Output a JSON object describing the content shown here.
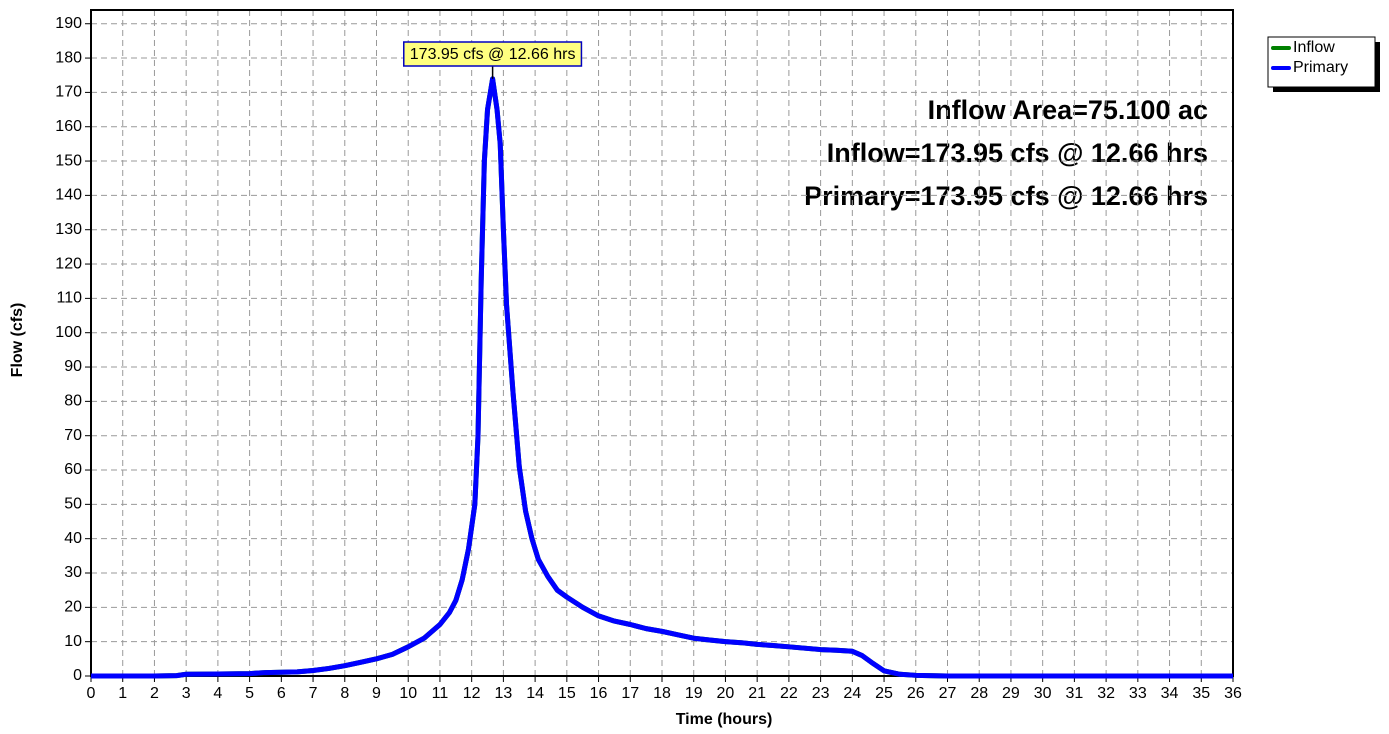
{
  "chart_data": {
    "type": "line",
    "y_label": "Flow  (cfs)",
    "x_label": "Time  (hours)",
    "annotations": [
      "173.95 cfs @ 12.66 hrs",
      "Inflow Area=75.100 ac",
      "Inflow=173.95 cfs @ 12.66 hrs",
      "Primary=173.95 cfs @ 12.66 hrs"
    ],
    "x": [
      0,
      1,
      2,
      2.7,
      3,
      4,
      5,
      5.5,
      6,
      6.5,
      7,
      7.5,
      8,
      8.5,
      9,
      9.5,
      10,
      10.5,
      11,
      11.3,
      11.5,
      11.7,
      11.9,
      12.1,
      12.2,
      12.3,
      12.4,
      12.5,
      12.66,
      12.8,
      12.9,
      13.0,
      13.1,
      13.3,
      13.5,
      13.7,
      13.9,
      14.1,
      14.4,
      14.7,
      15,
      15.5,
      16,
      16.5,
      17,
      17.5,
      18,
      18.5,
      19,
      19.5,
      20,
      20.5,
      21,
      21.5,
      22,
      22.5,
      23,
      23.5,
      24,
      24.3,
      24.6,
      25,
      25.5,
      26,
      27,
      36
    ],
    "series": [
      {
        "name": "Inflow",
        "color": "#008000",
        "values": [
          0,
          0,
          0,
          0.1,
          0.5,
          0.6,
          0.7,
          1,
          1.1,
          1.2,
          1.6,
          2.2,
          3,
          4,
          5,
          6.3,
          8.5,
          11,
          15,
          18.5,
          22,
          28,
          37,
          50,
          70,
          115,
          150,
          165,
          173.95,
          165,
          155,
          130,
          108,
          83,
          61,
          48,
          40,
          34,
          29,
          25,
          23,
          20,
          17.5,
          16,
          15,
          13.8,
          13,
          12,
          11,
          10.5,
          10,
          9.7,
          9.2,
          8.9,
          8.5,
          8.1,
          7.7,
          7.5,
          7.2,
          6,
          4,
          1.5,
          0.5,
          0.2,
          0,
          0
        ]
      },
      {
        "name": "Primary",
        "color": "#0000ff",
        "values": [
          0,
          0,
          0,
          0.1,
          0.5,
          0.6,
          0.7,
          1,
          1.1,
          1.2,
          1.6,
          2.2,
          3,
          4,
          5,
          6.3,
          8.5,
          11,
          15,
          18.5,
          22,
          28,
          37,
          50,
          70,
          115,
          150,
          165,
          173.95,
          165,
          155,
          130,
          108,
          83,
          61,
          48,
          40,
          34,
          29,
          25,
          23,
          20,
          17.5,
          16,
          15,
          13.8,
          13,
          12,
          11,
          10.5,
          10,
          9.7,
          9.2,
          8.9,
          8.5,
          8.1,
          7.7,
          7.5,
          7.2,
          6,
          4,
          1.5,
          0.5,
          0.2,
          0,
          0
        ]
      }
    ],
    "xlim": [
      0,
      36
    ],
    "ylim": [
      0,
      194
    ],
    "xticks": [
      0,
      1,
      2,
      3,
      4,
      5,
      6,
      7,
      8,
      9,
      10,
      11,
      12,
      13,
      14,
      15,
      16,
      17,
      18,
      19,
      20,
      21,
      22,
      23,
      24,
      25,
      26,
      27,
      28,
      29,
      30,
      31,
      32,
      33,
      34,
      35,
      36
    ],
    "yticks": [
      0,
      10,
      20,
      30,
      40,
      50,
      60,
      70,
      80,
      90,
      100,
      110,
      120,
      130,
      140,
      150,
      160,
      170,
      180,
      190
    ],
    "grid": true,
    "legend": "outside-top-right"
  }
}
